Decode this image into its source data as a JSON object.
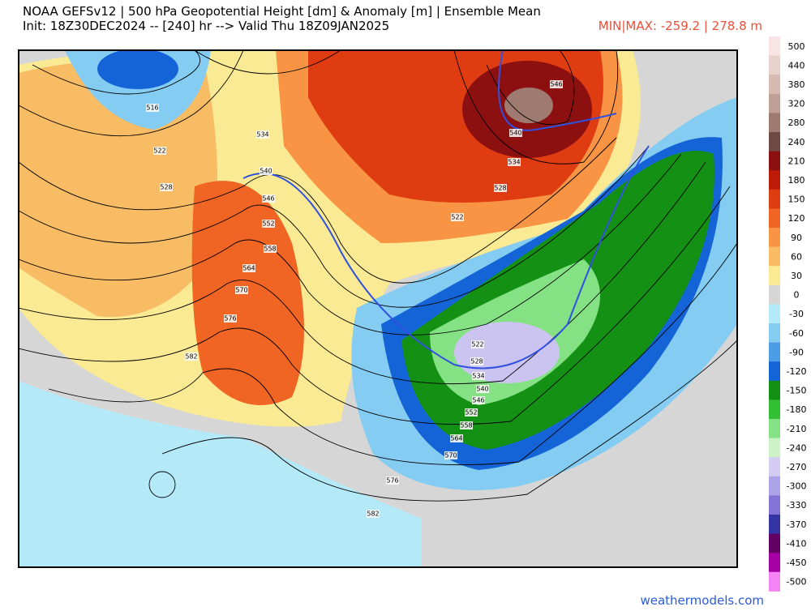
{
  "header": {
    "title": "NOAA GEFSv12 | 500 hPa Geopotential Height [dm] & Anomaly [m] | Ensemble Mean",
    "subtitle": "Init: 18Z30DEC2024 -- [240] hr --> Valid Thu 18Z09JAN2025",
    "minmax": "MIN|MAX: -259.2 | 278.8 m"
  },
  "colorbar": {
    "levels": [
      500,
      440,
      380,
      320,
      280,
      240,
      210,
      180,
      150,
      120,
      90,
      60,
      30,
      0,
      -30,
      -60,
      -90,
      -120,
      -150,
      -180,
      -210,
      -240,
      -270,
      -300,
      -330,
      -370,
      -410,
      -450,
      -500
    ],
    "colors": [
      "#f8e4e4",
      "#e8d2cc",
      "#d6bab2",
      "#bfa096",
      "#9e7a70",
      "#6e4a42",
      "#8c1010",
      "#be1a08",
      "#e03c12",
      "#f06424",
      "#f89444",
      "#f8bc64",
      "#faea94",
      "#d6d6d6",
      "#b4eaf8",
      "#84ccf2",
      "#4c9ce8",
      "#1464d8",
      "#149014",
      "#34c034",
      "#84e284",
      "#ccf2c8",
      "#d4ccf2",
      "#aca4e8",
      "#8474d8",
      "#3434a4",
      "#640064",
      "#a400a4",
      "#f484f4"
    ]
  },
  "contour_labels": [
    516,
    522,
    528,
    534,
    540,
    546,
    552,
    558,
    564,
    570,
    576,
    582,
    546,
    540,
    534,
    528,
    522,
    522,
    528,
    534,
    540,
    546,
    552,
    558,
    564,
    570,
    576,
    582
  ],
  "footer": {
    "source": "weathermodels.com"
  }
}
